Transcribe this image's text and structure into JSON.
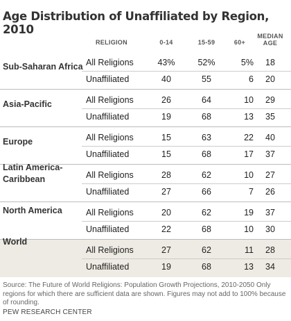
{
  "title": "Age Distribution of Unaffiliated by Region, 2010",
  "columns": {
    "religion": "RELIGION",
    "age1": "0-14",
    "age2": "15-59",
    "age3": "60+",
    "median_line1": "MEDIAN",
    "median_line2": "AGE"
  },
  "regions": [
    {
      "name_line1": "Sub-Saharan Africa",
      "name_line2": "",
      "rows": [
        {
          "religion": "All Religions",
          "a": "43%",
          "b": "52%",
          "c": "5%",
          "m": "18"
        },
        {
          "religion": "Unaffiliated",
          "a": "40",
          "b": "55",
          "c": "6",
          "m": "20"
        }
      ]
    },
    {
      "name_line1": "Asia-Pacific",
      "name_line2": "",
      "rows": [
        {
          "religion": "All Religions",
          "a": "26",
          "b": "64",
          "c": "10",
          "m": "29"
        },
        {
          "religion": "Unaffiliated",
          "a": "19",
          "b": "68",
          "c": "13",
          "m": "35"
        }
      ]
    },
    {
      "name_line1": "Europe",
      "name_line2": "",
      "rows": [
        {
          "religion": "All Religions",
          "a": "15",
          "b": "63",
          "c": "22",
          "m": "40"
        },
        {
          "religion": "Unaffiliated",
          "a": "15",
          "b": "68",
          "c": "17",
          "m": "37"
        }
      ]
    },
    {
      "name_line1": "Latin America-",
      "name_line2": "Caribbean",
      "rows": [
        {
          "religion": "All Religions",
          "a": "28",
          "b": "62",
          "c": "10",
          "m": "27"
        },
        {
          "religion": "Unaffiliated",
          "a": "27",
          "b": "66",
          "c": "7",
          "m": "26"
        }
      ]
    },
    {
      "name_line1": "North America",
      "name_line2": "",
      "rows": [
        {
          "religion": "All Religions",
          "a": "20",
          "b": "62",
          "c": "19",
          "m": "37"
        },
        {
          "religion": "Unaffiliated",
          "a": "22",
          "b": "68",
          "c": "10",
          "m": "30"
        }
      ]
    },
    {
      "name_line1": "World",
      "name_line2": "",
      "rows": [
        {
          "religion": "All Religions",
          "a": "27",
          "b": "62",
          "c": "11",
          "m": "28"
        },
        {
          "religion": "Unaffiliated",
          "a": "19",
          "b": "68",
          "c": "13",
          "m": "34"
        }
      ]
    }
  ],
  "source": "Source: The Future of World Religions: Population Growth Projections, 2010-2050 Only regions for which there are sufficient data are shown. Figures may not add to 100% because of rounding.",
  "credit": "PEW RESEARCH CENTER"
}
